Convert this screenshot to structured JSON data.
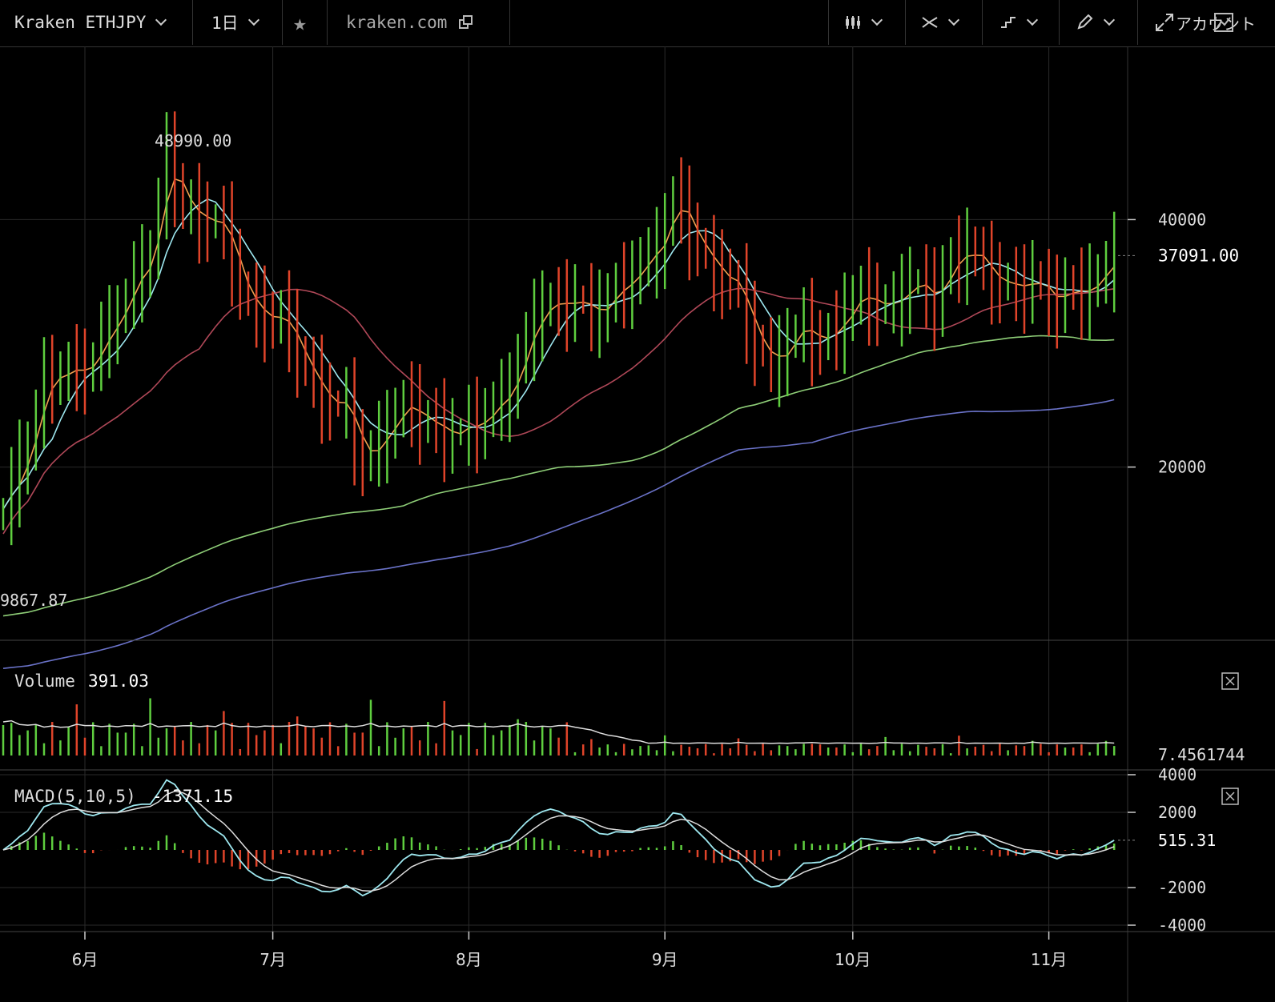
{
  "toolbar": {
    "symbol": "Kraken ETHJPY",
    "interval": "1日",
    "source": "kraken.com",
    "account": "アカウント"
  },
  "colors": {
    "up": "#5fce3f",
    "down": "#e0442a",
    "ma_orange": "#f0a050",
    "ma_cyan": "#9ee8f0",
    "ma_red": "#b04858",
    "ma_green": "#8fcf78",
    "ma_blue": "#6a72c8",
    "grid": "#2a2a2a"
  },
  "chart_data": [
    {
      "type": "candlestick",
      "name": "price",
      "x_ticks": [
        "6月",
        "7月",
        "8月",
        "9月",
        "10月",
        "11月"
      ],
      "y_ticks": [
        40000,
        20000
      ],
      "last_price": "37091.00",
      "high_label": "48990.00",
      "low_label": "9867.87",
      "ylim": [
        6000,
        54000
      ],
      "anchors": [
        [
          0,
          16000
        ],
        [
          5,
          27000
        ],
        [
          10,
          28000
        ],
        [
          14,
          32000
        ],
        [
          18,
          38000
        ],
        [
          20,
          45000
        ],
        [
          22,
          41000
        ],
        [
          26,
          40000
        ],
        [
          30,
          33000
        ],
        [
          34,
          32000
        ],
        [
          38,
          27000
        ],
        [
          42,
          24000
        ],
        [
          44,
          20500
        ],
        [
          48,
          24000
        ],
        [
          50,
          25000
        ],
        [
          54,
          23000
        ],
        [
          56,
          22500
        ],
        [
          58,
          23500
        ],
        [
          60,
          25000
        ],
        [
          62,
          26000
        ],
        [
          66,
          34000
        ],
        [
          68,
          33000
        ],
        [
          70,
          33500
        ],
        [
          72,
          32500
        ],
        [
          74,
          33500
        ],
        [
          77,
          35000
        ],
        [
          80,
          38000
        ],
        [
          82,
          42000
        ],
        [
          84,
          39000
        ],
        [
          86,
          37000
        ],
        [
          88,
          36000
        ],
        [
          90,
          33500
        ],
        [
          92,
          30000
        ],
        [
          94,
          28500
        ],
        [
          96,
          30000
        ],
        [
          98,
          31500
        ],
        [
          100,
          30000
        ],
        [
          102,
          32000
        ],
        [
          104,
          33000
        ],
        [
          106,
          33500
        ],
        [
          108,
          33000
        ],
        [
          110,
          34000
        ],
        [
          112,
          34500
        ],
        [
          114,
          34000
        ],
        [
          116,
          37000
        ],
        [
          118,
          37500
        ],
        [
          120,
          36000
        ],
        [
          122,
          35000
        ],
        [
          124,
          34500
        ],
        [
          126,
          34500
        ],
        [
          128,
          34000
        ],
        [
          130,
          34500
        ],
        [
          132,
          34000
        ],
        [
          134,
          35000
        ],
        [
          135,
          36500
        ],
        [
          136,
          37091
        ]
      ],
      "count": 137
    },
    {
      "type": "bar",
      "name": "Volume",
      "value_label": "391.03",
      "right_label": "7.4561744"
    },
    {
      "type": "line",
      "name": "MACD(5,10,5)",
      "value_label": "-1371.15",
      "y_ticks": [
        "4000",
        "2000",
        "515.31",
        "-2000",
        "-4000"
      ]
    }
  ],
  "legend": {
    "volume_title": "Volume",
    "macd_title": "MACD(5,10,5)"
  }
}
